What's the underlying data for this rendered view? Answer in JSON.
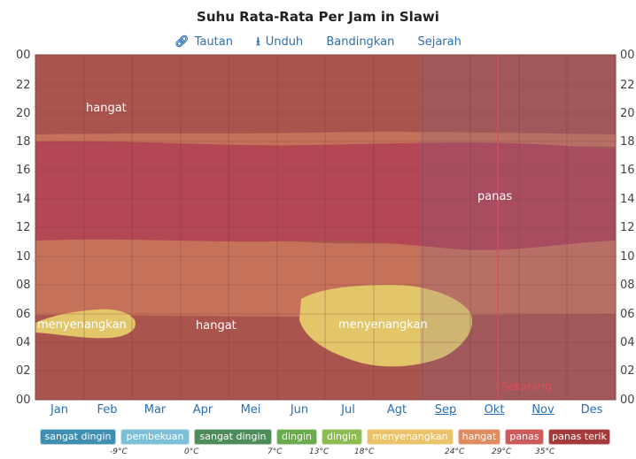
{
  "title": "Suhu Rata-Rata Per Jam in Slawi",
  "toolbar": {
    "link_label": "Tautan",
    "download_label": "Unduh",
    "compare_label": "Bandingkan",
    "history_label": "Sejarah"
  },
  "icons": {
    "link": "link-icon",
    "download": "download-icon"
  },
  "y_axis": [
    "00",
    "22",
    "20",
    "18",
    "16",
    "14",
    "12",
    "10",
    "08",
    "06",
    "04",
    "02",
    "00"
  ],
  "months": [
    "Jan",
    "Feb",
    "Mar",
    "Apr",
    "Mei",
    "Jun",
    "Jul",
    "Agt",
    "Sep",
    "Okt",
    "Nov",
    "Des"
  ],
  "region_labels": {
    "warm_top": "hangat",
    "hot": "panas",
    "pleasant_left": "menyenangkan",
    "warm_mid": "hangat",
    "pleasant_center": "menyenangkan"
  },
  "now_label": "Sekarang",
  "legend": [
    {
      "label": "sangat dingin",
      "color": "#3f8fb0"
    },
    {
      "label": "pembekuan",
      "color": "#7cc0d8"
    },
    {
      "label": "sangat dingin",
      "color": "#4e8c5a"
    },
    {
      "label": "dingin",
      "color": "#6aab4e"
    },
    {
      "label": "dingin",
      "color": "#8dbd52"
    },
    {
      "label": "menyenangkan",
      "color": "#ebc46a"
    },
    {
      "label": "hangat",
      "color": "#df8d60"
    },
    {
      "label": "panas",
      "color": "#cc5b5b"
    },
    {
      "label": "panas terik",
      "color": "#a43a3a"
    }
  ],
  "thresholds": [
    "-9°C",
    "0°C",
    "7°C",
    "13°C",
    "18°C",
    "24°C",
    "29°C",
    "35°C"
  ],
  "colors": {
    "hangat": "#a9554d",
    "panas": "#b34754",
    "menyenangkan": "#e3c66a",
    "band_orange": "#c6715a",
    "now_line": "#e14a5a"
  }
}
